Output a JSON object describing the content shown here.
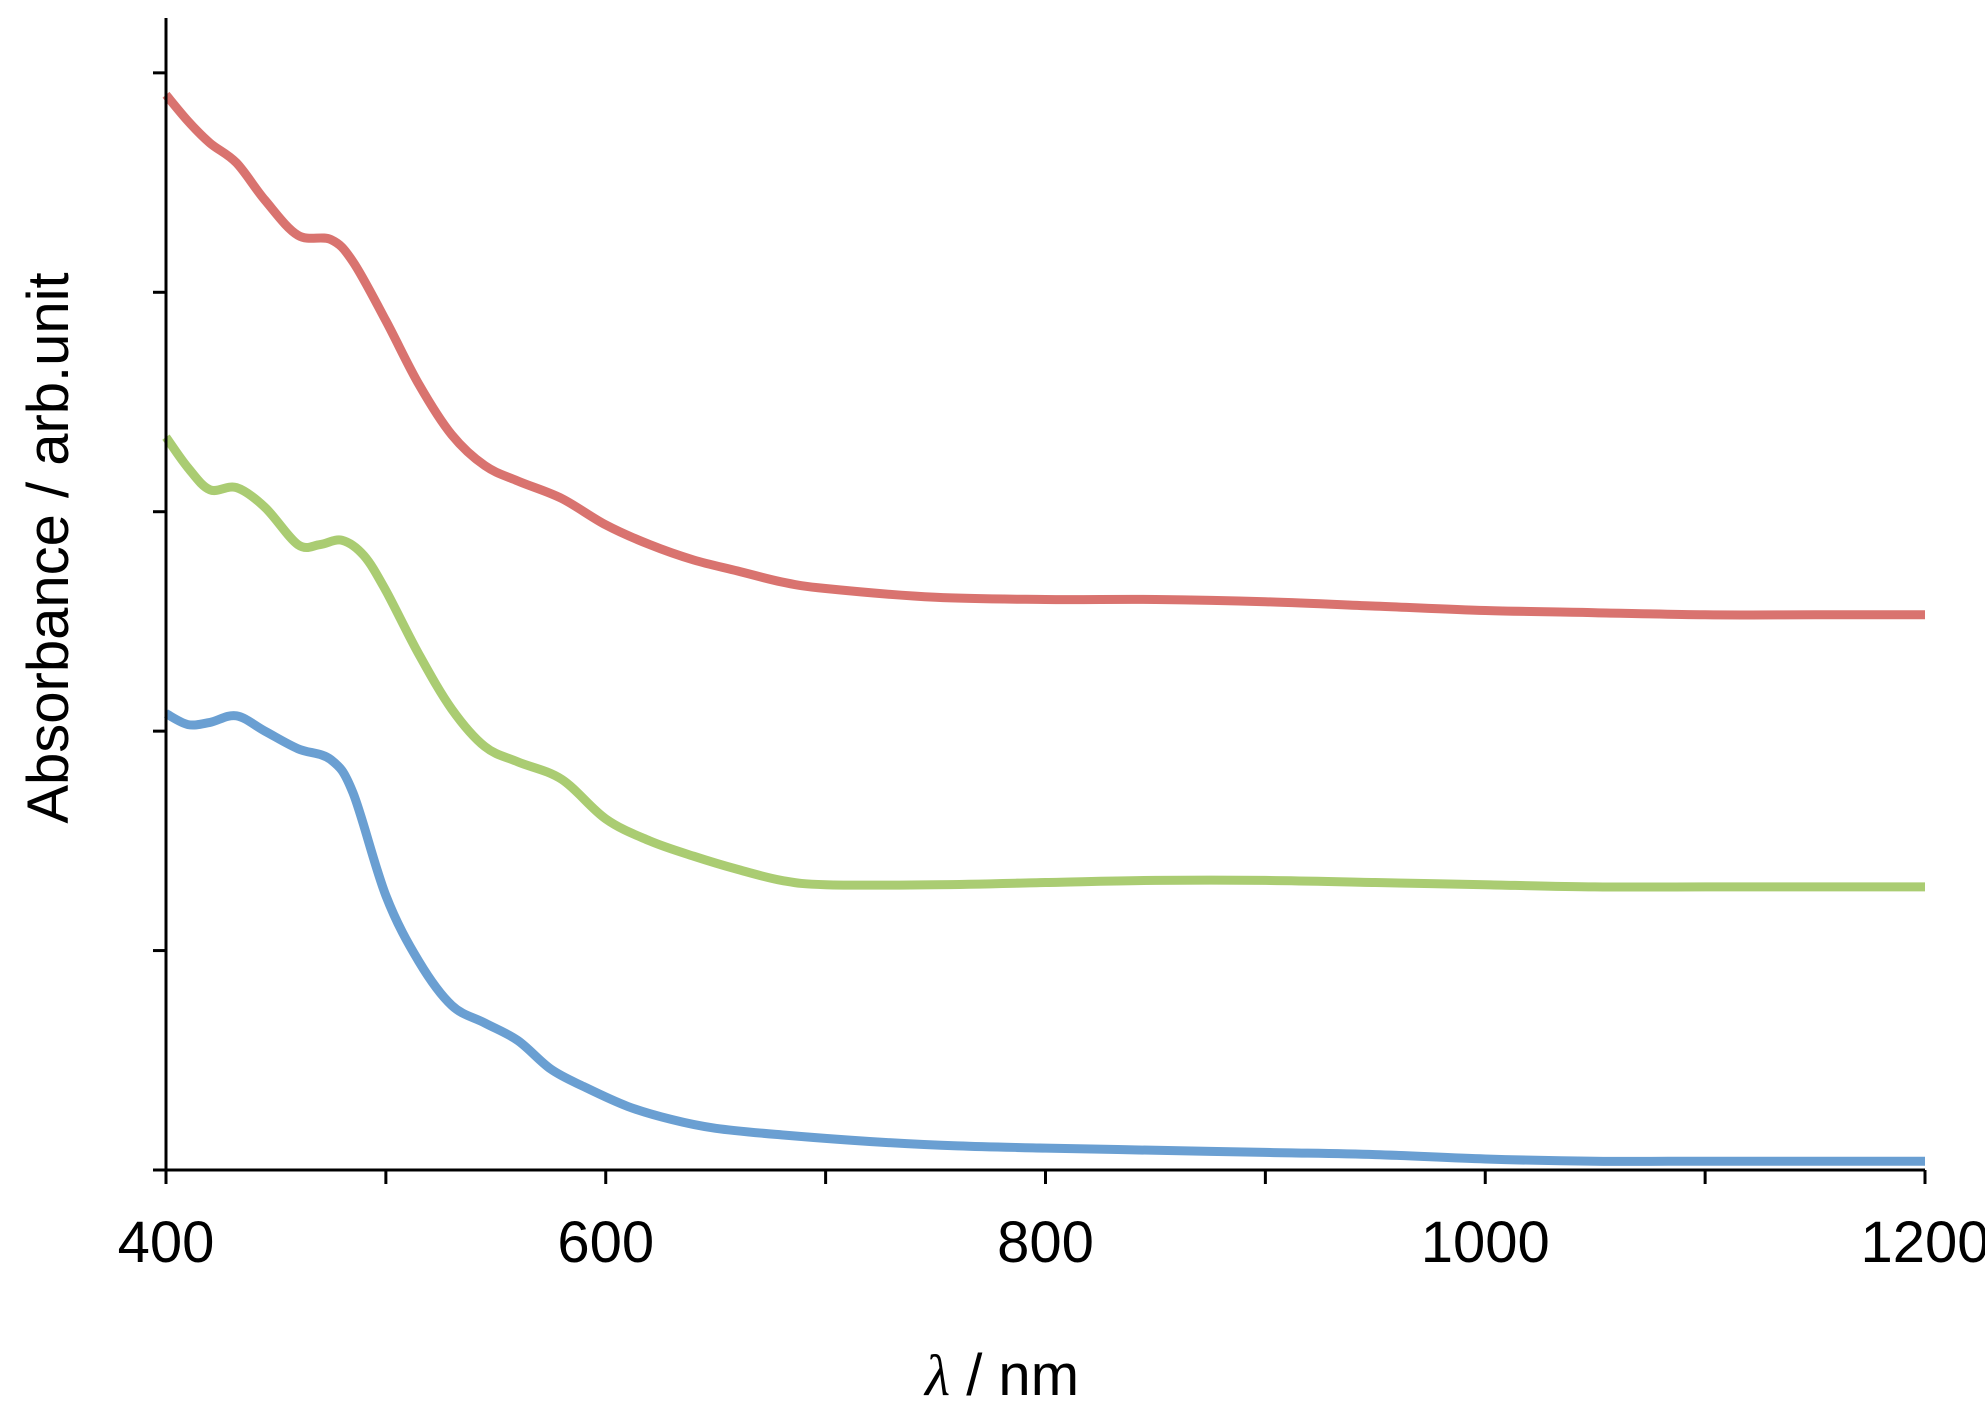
{
  "chart_data": {
    "type": "line",
    "title": "",
    "xlabel_symbol": "λ",
    "xlabel_unit": " / nm",
    "ylabel": "Absorbance / arb.unit",
    "xlim": [
      400,
      1200
    ],
    "ylim": [
      0,
      5.25
    ],
    "x_ticks_major": [
      400,
      600,
      800,
      1000,
      1200
    ],
    "x_ticks_minor": [
      500,
      700,
      900,
      1100
    ],
    "y_ticks": [
      0,
      1,
      2,
      3,
      4,
      5
    ],
    "y_tick_labels_shown": false,
    "grid": false,
    "legend": "none",
    "series": [
      {
        "color": "#d9736f",
        "x": [
          400,
          410,
          420,
          432,
          445,
          460,
          475,
          485,
          500,
          515,
          530,
          545,
          560,
          580,
          600,
          620,
          640,
          660,
          680,
          700,
          750,
          800,
          850,
          900,
          950,
          1000,
          1050,
          1100,
          1150,
          1200
        ],
        "y": [
          4.9,
          4.78,
          4.68,
          4.59,
          4.42,
          4.26,
          4.24,
          4.14,
          3.87,
          3.58,
          3.35,
          3.21,
          3.14,
          3.06,
          2.94,
          2.85,
          2.78,
          2.73,
          2.68,
          2.65,
          2.61,
          2.6,
          2.6,
          2.59,
          2.57,
          2.55,
          2.54,
          2.53,
          2.53,
          2.53
        ]
      },
      {
        "color": "#aacc72",
        "x": [
          400,
          410,
          420,
          432,
          445,
          460,
          470,
          480,
          490,
          500,
          515,
          530,
          545,
          560,
          580,
          600,
          620,
          640,
          660,
          680,
          700,
          750,
          800,
          850,
          900,
          950,
          1000,
          1050,
          1100,
          1150,
          1200
        ],
        "y": [
          3.34,
          3.2,
          3.1,
          3.11,
          3.02,
          2.85,
          2.85,
          2.87,
          2.8,
          2.64,
          2.35,
          2.1,
          1.93,
          1.86,
          1.78,
          1.6,
          1.5,
          1.43,
          1.37,
          1.32,
          1.3,
          1.3,
          1.31,
          1.32,
          1.32,
          1.31,
          1.3,
          1.29,
          1.29,
          1.29,
          1.29
        ]
      },
      {
        "color": "#6a9fd2",
        "x": [
          400,
          410,
          420,
          432,
          445,
          460,
          475,
          485,
          500,
          515,
          530,
          545,
          560,
          575,
          590,
          610,
          630,
          650,
          680,
          720,
          760,
          800,
          850,
          900,
          950,
          1000,
          1050,
          1100,
          1150,
          1200
        ],
        "y": [
          2.08,
          2.03,
          2.04,
          2.07,
          2.0,
          1.92,
          1.87,
          1.72,
          1.25,
          0.95,
          0.75,
          0.67,
          0.59,
          0.46,
          0.38,
          0.29,
          0.23,
          0.19,
          0.16,
          0.13,
          0.11,
          0.1,
          0.09,
          0.08,
          0.07,
          0.05,
          0.04,
          0.04,
          0.04,
          0.04
        ]
      }
    ]
  }
}
